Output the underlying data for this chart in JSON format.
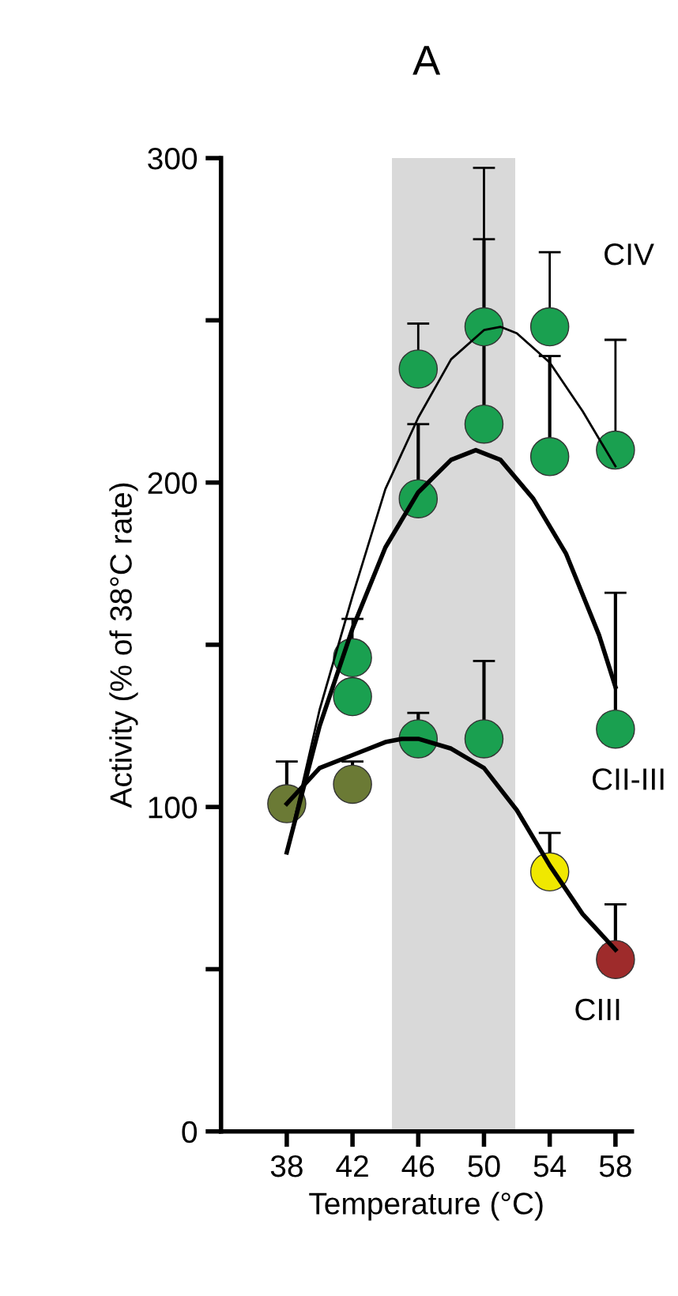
{
  "chart_data": {
    "type": "scatter",
    "title": "A",
    "xlabel": "Temperature (°C)",
    "ylabel": "Activity (% of 38°C rate)",
    "x": [
      38,
      42,
      46,
      50,
      54,
      58
    ],
    "xlim": [
      34,
      59
    ],
    "xticks": [
      38,
      42,
      46,
      50,
      54,
      58
    ],
    "ylim": [
      0,
      300
    ],
    "yticks": [
      0,
      {
        "value": 50,
        "label": null
      },
      100,
      {
        "value": 150,
        "label": null
      },
      200,
      {
        "value": 250,
        "label": null
      },
      300
    ],
    "grid": false,
    "marker": "circle",
    "bands": [
      {
        "axis": "x",
        "from": 44.4,
        "to": 51.9,
        "color": "#d9d9d9"
      }
    ],
    "series": [
      {
        "type": "line",
        "marker": "none",
        "color": "#000000",
        "x": [
          38,
          40,
          42,
          44,
          46,
          48,
          50,
          51,
          52,
          54,
          56,
          58
        ],
        "values": [
          86,
          130,
          165,
          198,
          220,
          238,
          247,
          248,
          246,
          237,
          222,
          205
        ]
      },
      {
        "type": "line",
        "marker": "none",
        "color": "#000000",
        "x": [
          38,
          40,
          42,
          44,
          46,
          48,
          49.5,
          51,
          53,
          55,
          57,
          58
        ],
        "values": [
          86,
          125,
          155,
          180,
          197,
          207,
          210,
          207,
          195,
          178,
          153,
          137
        ]
      },
      {
        "type": "line",
        "marker": "none",
        "color": "#000000",
        "x": [
          38,
          40,
          42,
          44,
          45,
          46,
          48,
          50,
          52,
          54,
          56,
          58
        ],
        "values": [
          101,
          112,
          116,
          120,
          121,
          121,
          118,
          112,
          99,
          82,
          67,
          56
        ]
      },
      {
        "name": "CIV",
        "color": "#1aa050",
        "values": [
          null,
          146,
          235,
          248,
          248,
          210
        ],
        "errors": [
          null,
          [
            146,
            158
          ],
          [
            235,
            249
          ],
          [
            248,
            297
          ],
          [
            248,
            271
          ],
          [
            210,
            244
          ]
        ]
      },
      {
        "name": "CII-III",
        "color": "#1aa050",
        "values": [
          null,
          134,
          195,
          218,
          208,
          124
        ],
        "errors": [
          null,
          null,
          [
            195,
            218
          ],
          [
            218,
            275
          ],
          [
            208,
            239
          ],
          [
            124,
            166
          ]
        ]
      },
      {
        "name": "CIII",
        "color": "#6b7a35",
        "colors": [
          "#6b7a35",
          "#6b7a35",
          "#1aa050",
          "#1aa050",
          "#f0e800",
          "#9e2b2b"
        ],
        "values": [
          101,
          107,
          121,
          121,
          80,
          53
        ],
        "errors": [
          [
            101,
            114
          ],
          [
            107,
            114
          ],
          [
            121,
            129
          ],
          [
            121,
            145
          ],
          [
            80,
            92
          ],
          [
            53,
            70
          ]
        ]
      }
    ]
  }
}
